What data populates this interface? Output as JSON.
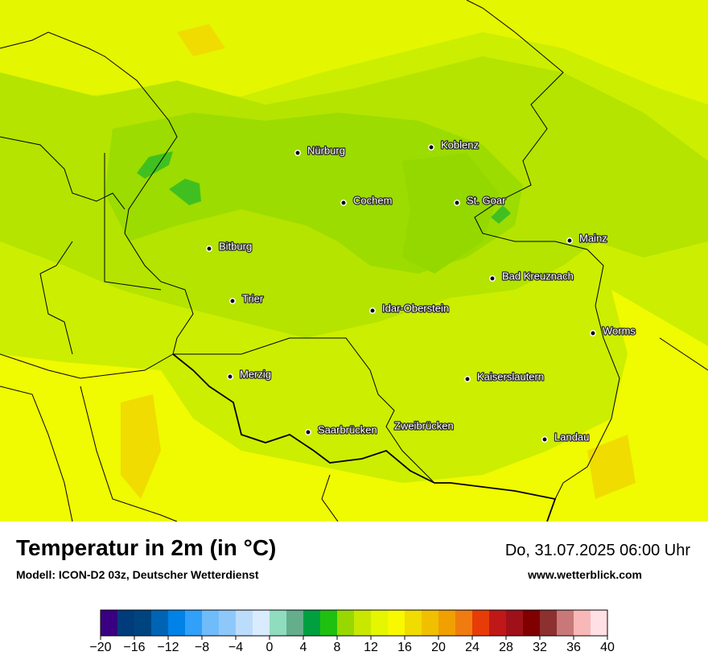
{
  "map": {
    "cities": [
      {
        "name": "Nürburg"
      },
      {
        "name": "Koblenz"
      },
      {
        "name": "Cochem"
      },
      {
        "name": "St. Goar"
      },
      {
        "name": "Mainz"
      },
      {
        "name": "Bitburg"
      },
      {
        "name": "Bad Kreuznach"
      },
      {
        "name": "Trier"
      },
      {
        "name": "Idar-Oberstein"
      },
      {
        "name": "Worms"
      },
      {
        "name": "Merzig"
      },
      {
        "name": "Kaiserslautern"
      },
      {
        "name": "Saarbrücken"
      },
      {
        "name": "Zweibrücken"
      },
      {
        "name": "Landau"
      }
    ]
  },
  "footer": {
    "title": "Temperatur in 2m (in °C)",
    "subtitle": "Modell: ICON-D2 03z, Deutscher Wetterdienst",
    "datetime": "Do, 31.07.2025 06:00 Uhr",
    "website": "www.wetterblick.com"
  },
  "legend": {
    "lim": [
      -20,
      40
    ],
    "colors": [
      "#3a0082",
      "#003c7c",
      "#00447f",
      "#0064b4",
      "#0082e6",
      "#30a0f8",
      "#70bcfa",
      "#8ec8fa",
      "#bcdcfc",
      "#d8ecfe",
      "#90dcbe",
      "#64ae8c",
      "#00a040",
      "#20c010",
      "#98d800",
      "#c8e800",
      "#e4f600",
      "#f8f800",
      "#f0dc00",
      "#f0c000",
      "#f0a000",
      "#f07c10",
      "#e83c08",
      "#c01818",
      "#a01018",
      "#800000",
      "#8c3030",
      "#c87878",
      "#f8b8b8",
      "#ffe0e4"
    ],
    "ticks": [
      {
        "value": -20,
        "label": "−20"
      },
      {
        "value": -16,
        "label": "−16"
      },
      {
        "value": -12,
        "label": "−12"
      },
      {
        "value": -8,
        "label": "−8"
      },
      {
        "value": -4,
        "label": "−4"
      },
      0,
      4,
      8,
      12,
      16,
      20,
      24,
      28,
      32,
      36,
      40
    ]
  }
}
